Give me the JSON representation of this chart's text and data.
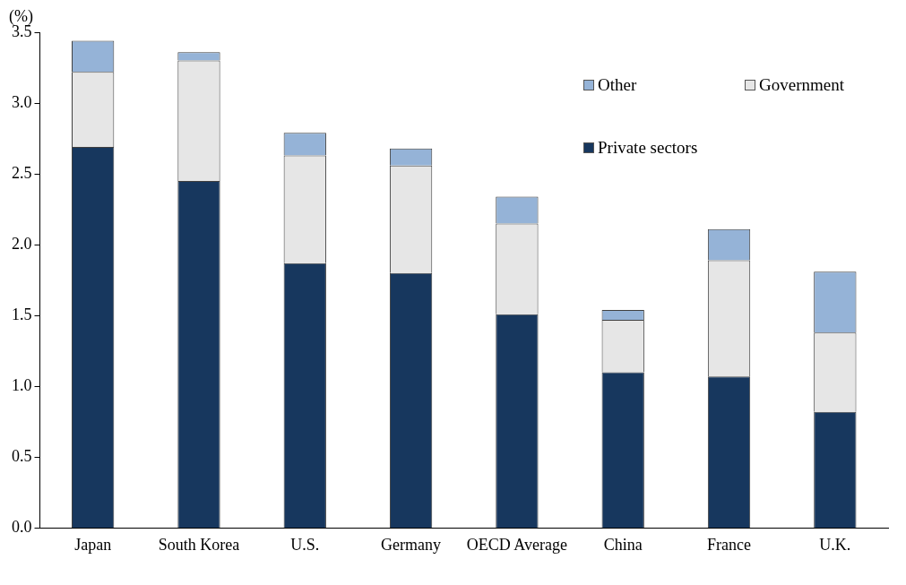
{
  "chart_data": {
    "type": "bar",
    "stacked": true,
    "ylabel": "(%)",
    "categories": [
      "Japan",
      "South Korea",
      "U.S.",
      "Germany",
      "OECD Average",
      "China",
      "France",
      "U.K."
    ],
    "series": [
      {
        "name": "Private sectors",
        "color": "#17375e",
        "values": [
          2.69,
          2.45,
          1.87,
          1.8,
          1.51,
          1.1,
          1.07,
          0.82
        ]
      },
      {
        "name": "Government",
        "color": "#e6e6e6",
        "values": [
          0.53,
          0.85,
          0.76,
          0.76,
          0.64,
          0.37,
          0.82,
          0.56
        ]
      },
      {
        "name": "Other",
        "color": "#95b3d7",
        "values": [
          0.22,
          0.06,
          0.16,
          0.12,
          0.19,
          0.07,
          0.22,
          0.43
        ]
      }
    ],
    "ylim": [
      0,
      3.5
    ],
    "yticks": [
      {
        "value": 0,
        "label": "0.0"
      },
      {
        "value": 0.5,
        "label": "0.5"
      },
      {
        "value": 1,
        "label": "1.0"
      },
      {
        "value": 1.5,
        "label": "1.5"
      },
      {
        "value": 2,
        "label": "2.0"
      },
      {
        "value": 2.5,
        "label": "2.5"
      },
      {
        "value": 3,
        "label": "3.0"
      },
      {
        "value": 3.5,
        "label": "3.5"
      }
    ],
    "grid": false,
    "legend": "top right"
  }
}
